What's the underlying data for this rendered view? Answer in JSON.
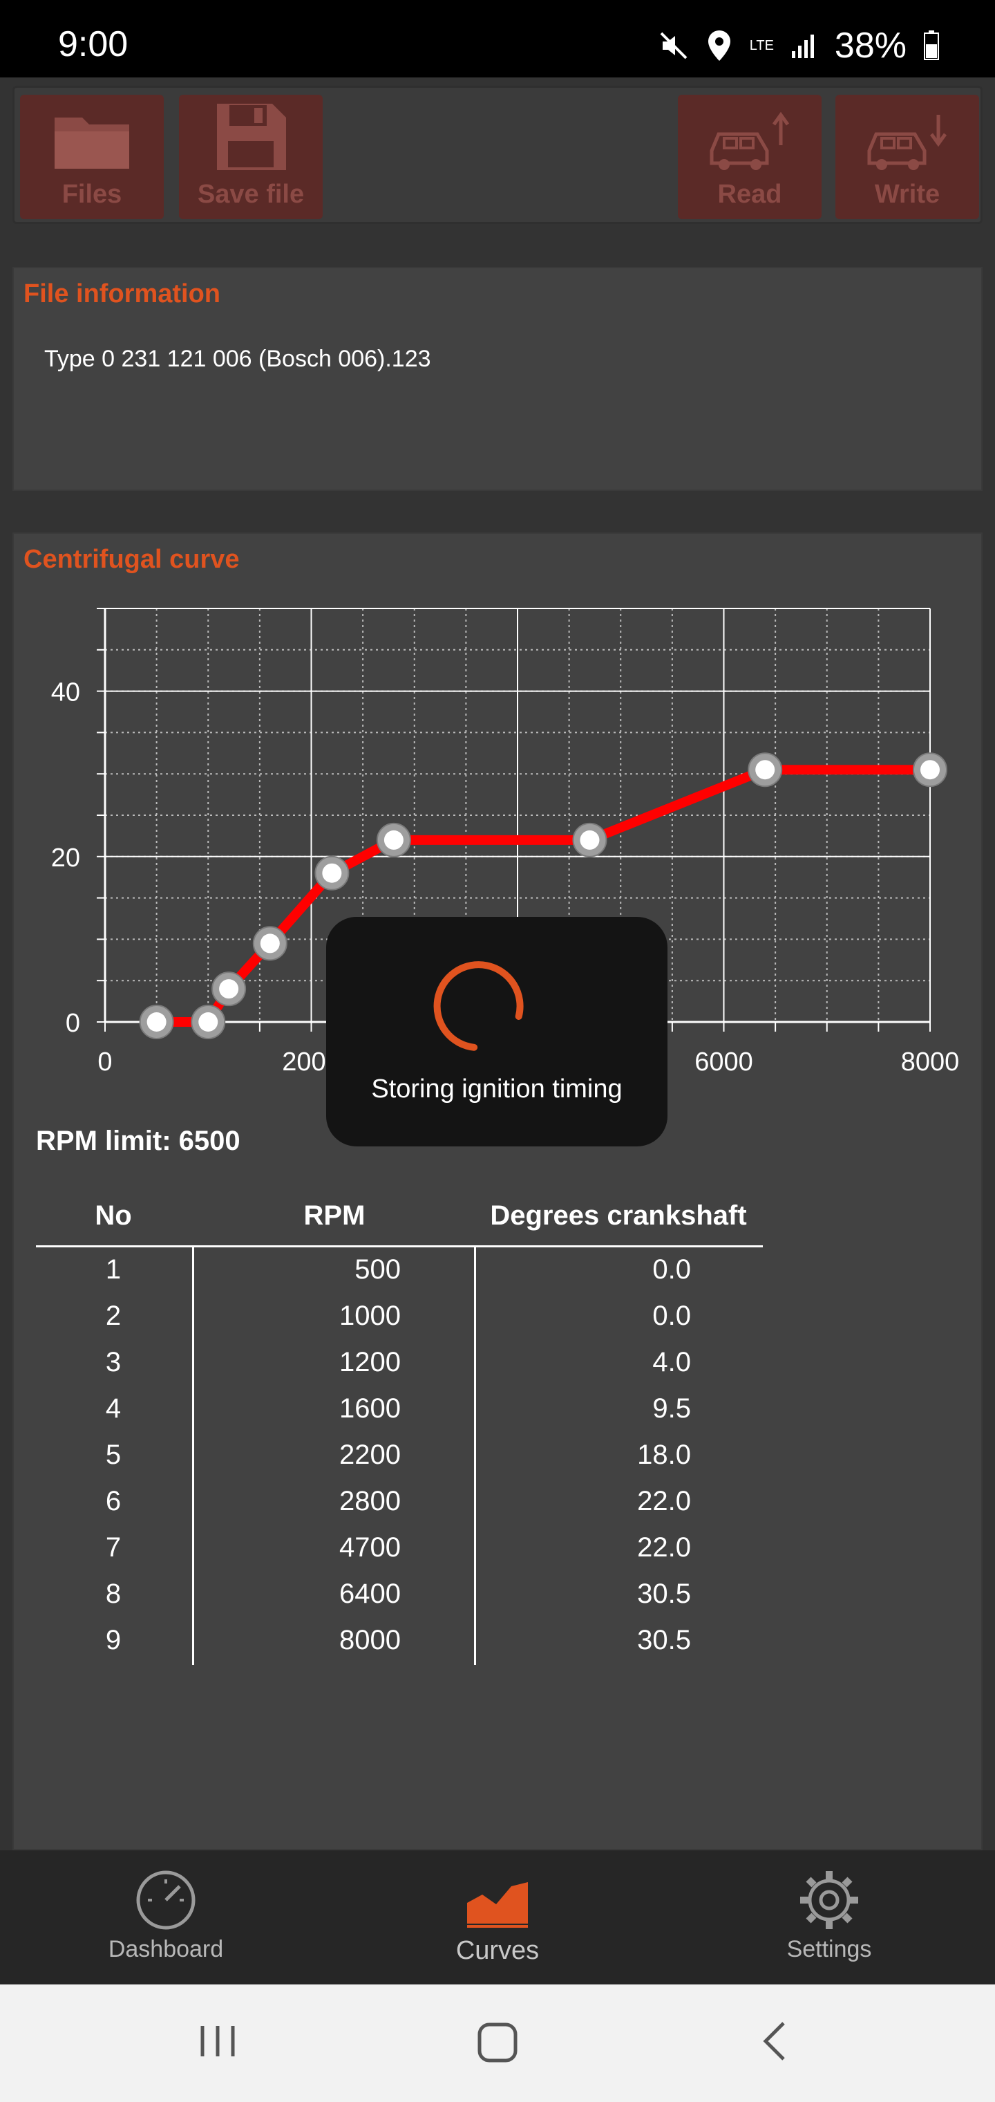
{
  "status_bar": {
    "time": "9:00",
    "network": "LTE",
    "battery": "38%"
  },
  "toolbar": {
    "files_label": "Files",
    "save_label": "Save file",
    "read_label": "Read",
    "write_label": "Write"
  },
  "file_info": {
    "title": "File information",
    "file_name": "Type 0 231 121 006 (Bosch 006).123"
  },
  "curve": {
    "title": "Centrifugal curve"
  },
  "chart_data": {
    "type": "line",
    "title": "Centrifugal curve",
    "xlabel": "",
    "ylabel": "",
    "xlim": [
      0,
      8000
    ],
    "ylim": [
      0,
      50
    ],
    "x_ticks": [
      0,
      2000,
      4000,
      6000,
      8000
    ],
    "y_ticks": [
      0,
      20,
      40
    ],
    "grid": true,
    "series": [
      {
        "color": "#ff0000",
        "x": [
          500,
          1000,
          1200,
          1600,
          2200,
          2800,
          4700,
          6400,
          8000
        ],
        "y": [
          0.0,
          0.0,
          4.0,
          9.5,
          18.0,
          22.0,
          22.0,
          30.5,
          30.5
        ]
      }
    ]
  },
  "rpm_limit": "RPM limit: 6500",
  "table": {
    "headers": [
      "No",
      "RPM",
      "Degrees crankshaft"
    ],
    "rows": [
      [
        "1",
        "500",
        "0.0"
      ],
      [
        "2",
        "1000",
        "0.0"
      ],
      [
        "3",
        "1200",
        "4.0"
      ],
      [
        "4",
        "1600",
        "9.5"
      ],
      [
        "5",
        "2200",
        "18.0"
      ],
      [
        "6",
        "2800",
        "22.0"
      ],
      [
        "7",
        "4700",
        "22.0"
      ],
      [
        "8",
        "6400",
        "30.5"
      ],
      [
        "9",
        "8000",
        "30.5"
      ]
    ]
  },
  "toast": {
    "message": "Storing ignition timing"
  },
  "bottom_nav": {
    "items": [
      {
        "label": "Dashboard",
        "icon": "speedometer-icon"
      },
      {
        "label": "Curves",
        "icon": "area-chart-icon",
        "active": true
      },
      {
        "label": "Settings",
        "icon": "gear-icon"
      }
    ]
  },
  "colors": {
    "accent": "#e0531f",
    "curve": "#ff0000",
    "button_bg": "#5b2a27"
  }
}
